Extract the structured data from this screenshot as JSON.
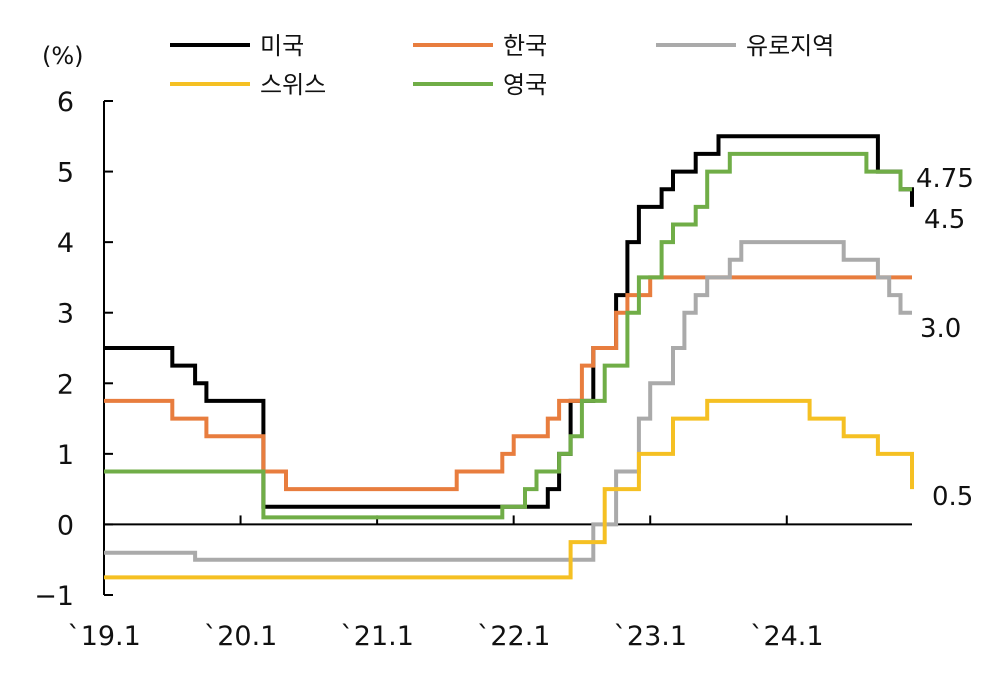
{
  "chart_data": {
    "type": "line",
    "step": true,
    "unit": "(%)",
    "ylim": [
      -1,
      6
    ],
    "yticks": [
      -1,
      0,
      1,
      2,
      3,
      4,
      5,
      6
    ],
    "xlim": [
      2019.0,
      2024.917
    ],
    "xticks": [
      {
        "value": 2019.0,
        "label": "`19.1"
      },
      {
        "value": 2020.0,
        "label": "`20.1"
      },
      {
        "value": 2021.0,
        "label": "`21.1"
      },
      {
        "value": 2022.0,
        "label": "`22.1"
      },
      {
        "value": 2023.0,
        "label": "`23.1"
      },
      {
        "value": 2024.0,
        "label": "`24.1"
      }
    ],
    "legend": {
      "position": "top",
      "columns": 3
    },
    "series": [
      {
        "name": "미국",
        "color": "#000000",
        "end_label": "4.5",
        "points": [
          [
            2019.0,
            2.5
          ],
          [
            2019.5,
            2.25
          ],
          [
            2019.667,
            2.0
          ],
          [
            2019.75,
            1.75
          ],
          [
            2020.167,
            0.25
          ],
          [
            2022.25,
            0.5
          ],
          [
            2022.333,
            1.0
          ],
          [
            2022.417,
            1.75
          ],
          [
            2022.583,
            2.5
          ],
          [
            2022.75,
            3.25
          ],
          [
            2022.833,
            4.0
          ],
          [
            2022.917,
            4.5
          ],
          [
            2023.083,
            4.75
          ],
          [
            2023.167,
            5.0
          ],
          [
            2023.333,
            5.25
          ],
          [
            2023.5,
            5.5
          ],
          [
            2024.667,
            5.0
          ],
          [
            2024.833,
            4.75
          ],
          [
            2024.917,
            4.5
          ]
        ]
      },
      {
        "name": "한국",
        "color": "#E87D3E",
        "end_label": "",
        "points": [
          [
            2019.0,
            1.75
          ],
          [
            2019.5,
            1.5
          ],
          [
            2019.75,
            1.25
          ],
          [
            2020.167,
            0.75
          ],
          [
            2020.333,
            0.5
          ],
          [
            2021.583,
            0.75
          ],
          [
            2021.917,
            1.0
          ],
          [
            2022.0,
            1.25
          ],
          [
            2022.25,
            1.5
          ],
          [
            2022.333,
            1.75
          ],
          [
            2022.5,
            2.25
          ],
          [
            2022.583,
            2.5
          ],
          [
            2022.75,
            3.0
          ],
          [
            2022.833,
            3.25
          ],
          [
            2023.0,
            3.5
          ],
          [
            2024.917,
            3.5
          ]
        ]
      },
      {
        "name": "유로지역",
        "color": "#AAAAAA",
        "end_label": "3.0",
        "points": [
          [
            2019.0,
            -0.4
          ],
          [
            2019.667,
            -0.5
          ],
          [
            2022.5,
            -0.5
          ],
          [
            2022.583,
            0.0
          ],
          [
            2022.75,
            0.75
          ],
          [
            2022.917,
            1.5
          ],
          [
            2023.0,
            2.0
          ],
          [
            2023.167,
            2.5
          ],
          [
            2023.25,
            3.0
          ],
          [
            2023.333,
            3.25
          ],
          [
            2023.417,
            3.5
          ],
          [
            2023.583,
            3.75
          ],
          [
            2023.667,
            4.0
          ],
          [
            2024.417,
            3.75
          ],
          [
            2024.667,
            3.5
          ],
          [
            2024.75,
            3.25
          ],
          [
            2024.833,
            3.0
          ],
          [
            2024.917,
            3.0
          ]
        ]
      },
      {
        "name": "스위스",
        "color": "#F5C023",
        "end_label": "0.5",
        "points": [
          [
            2019.0,
            -0.75
          ],
          [
            2022.417,
            -0.25
          ],
          [
            2022.667,
            0.5
          ],
          [
            2022.917,
            1.0
          ],
          [
            2023.167,
            1.5
          ],
          [
            2023.417,
            1.75
          ],
          [
            2024.167,
            1.5
          ],
          [
            2024.417,
            1.25
          ],
          [
            2024.667,
            1.0
          ],
          [
            2024.917,
            0.5
          ]
        ]
      },
      {
        "name": "영국",
        "color": "#70AD47",
        "end_label": "4.75",
        "points": [
          [
            2019.0,
            0.75
          ],
          [
            2020.167,
            0.1
          ],
          [
            2021.917,
            0.25
          ],
          [
            2022.083,
            0.5
          ],
          [
            2022.167,
            0.75
          ],
          [
            2022.333,
            1.0
          ],
          [
            2022.417,
            1.25
          ],
          [
            2022.5,
            1.75
          ],
          [
            2022.667,
            2.25
          ],
          [
            2022.833,
            3.0
          ],
          [
            2022.917,
            3.5
          ],
          [
            2023.083,
            4.0
          ],
          [
            2023.167,
            4.25
          ],
          [
            2023.333,
            4.5
          ],
          [
            2023.417,
            5.0
          ],
          [
            2023.583,
            5.25
          ],
          [
            2024.583,
            5.0
          ],
          [
            2024.833,
            4.75
          ],
          [
            2024.917,
            4.75
          ]
        ]
      }
    ]
  }
}
